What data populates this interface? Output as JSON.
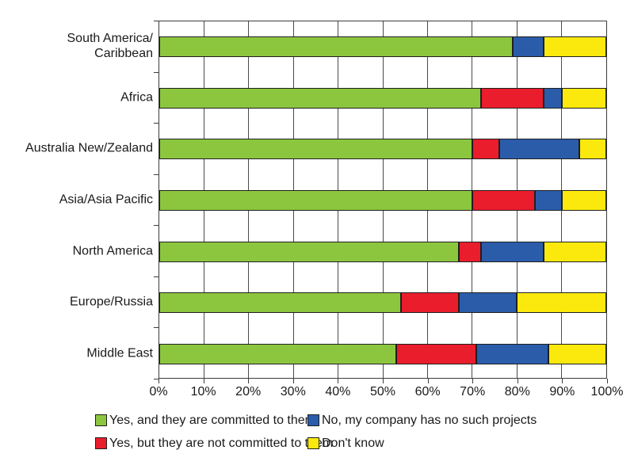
{
  "chart_data": {
    "type": "bar",
    "orientation": "horizontal",
    "stacked": true,
    "title": "",
    "xlabel": "",
    "ylabel": "",
    "xlim": [
      0,
      100
    ],
    "grid": true,
    "x_tick_labels": [
      "0%",
      "10%",
      "20%",
      "30%",
      "40%",
      "50%",
      "60%",
      "70%",
      "80%",
      "90%",
      "100%"
    ],
    "categories": [
      {
        "name": "South America/Caribbean",
        "lines": [
          "South America/",
          "Caribbean"
        ]
      },
      {
        "name": "Africa",
        "lines": [
          "Africa"
        ]
      },
      {
        "name": "Australia New/Zealand",
        "lines": [
          "Australia New/Zealand"
        ]
      },
      {
        "name": "Asia/Asia Pacific",
        "lines": [
          "Asia/Asia Pacific"
        ]
      },
      {
        "name": "North America",
        "lines": [
          "North America"
        ]
      },
      {
        "name": "Europe/Russia",
        "lines": [
          "Europe/Russia"
        ]
      },
      {
        "name": "Middle East",
        "lines": [
          "Middle East"
        ]
      }
    ],
    "series": [
      {
        "name": "Yes, and they are committed to them",
        "color": "#8CC63F",
        "values": [
          79,
          72,
          70,
          70,
          67,
          54,
          53
        ]
      },
      {
        "name": "Yes, but they are not committed to them",
        "color": "#E91D2C",
        "values": [
          0,
          14,
          6,
          14,
          5,
          13,
          18
        ]
      },
      {
        "name": "No, my company has no such projects",
        "color": "#2B5CAA",
        "values": [
          7,
          4,
          18,
          6,
          14,
          13,
          16
        ]
      },
      {
        "name": "Don't know",
        "color": "#FBE90D",
        "values": [
          14,
          10,
          6,
          10,
          14,
          20,
          13
        ]
      }
    ],
    "legend_position": "bottom",
    "legend_display_order": [
      0,
      2,
      1,
      3
    ],
    "colors": {
      "grid": "#4a4a4a",
      "axis": "#3c3c3c",
      "segment_border": "#1f1f1f",
      "text": "#1a1a1a",
      "background": "#ffffff"
    }
  }
}
